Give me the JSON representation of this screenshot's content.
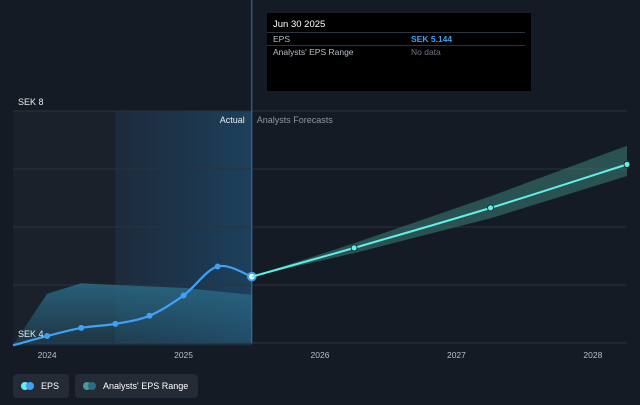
{
  "colors": {
    "background": "#151b24",
    "eps_line": "#3fa1f5",
    "forecast_line": "#5ff0e8",
    "range_fill": "#2a6b87",
    "forecast_band": "#3d7f7a",
    "gridline": "#2a323d",
    "axis_text": "#b8bfca"
  },
  "tooltip": {
    "date": "Jun 30 2025",
    "rows": [
      {
        "label": "EPS",
        "value": "SEK 5.144"
      },
      {
        "label": "Analysts' EPS Range",
        "value": "No data"
      }
    ]
  },
  "legend": {
    "items": [
      {
        "label": "EPS",
        "icon": "eps-dot-icon"
      },
      {
        "label": "Analysts' EPS Range",
        "icon": "range-dot-icon"
      }
    ]
  },
  "chart_data": {
    "type": "line",
    "currency": "SEK",
    "y_labels": [
      "SEK 8",
      "SEK 4"
    ],
    "ylim": [
      4,
      8
    ],
    "xlim": [
      2023.75,
      2028.25
    ],
    "x_ticks": [
      {
        "label": "2024",
        "value": 2024.0
      },
      {
        "label": "2025",
        "value": 2025.0
      },
      {
        "label": "2026",
        "value": 2026.0
      },
      {
        "label": "2027",
        "value": 2027.0
      },
      {
        "label": "2028",
        "value": 2028.0
      }
    ],
    "region_labels": {
      "actual": "Actual",
      "forecast": "Analysts Forecasts"
    },
    "actual_end": 2025.5,
    "highlight_start": 2024.5,
    "series": [
      {
        "name": "EPS",
        "kind": "actual",
        "x": [
          2023.75,
          2024.0,
          2024.25,
          2024.5,
          2024.75,
          2025.0,
          2025.25,
          2025.5
        ],
        "values": [
          3.96,
          4.12,
          4.26,
          4.33,
          4.47,
          4.82,
          5.32,
          5.144
        ]
      },
      {
        "name": "EPS forecast",
        "kind": "forecast",
        "x": [
          2025.5,
          2026.25,
          2027.25,
          2028.25
        ],
        "values": [
          5.144,
          5.64,
          6.33,
          7.08
        ],
        "band_low": [
          5.144,
          5.55,
          6.15,
          6.88
        ],
        "band_high": [
          5.144,
          5.72,
          6.53,
          7.4
        ]
      },
      {
        "name": "Analysts' EPS Range",
        "kind": "range",
        "x": [
          2023.75,
          2024.0,
          2024.25,
          2024.5,
          2025.0,
          2025.5
        ],
        "low": [
          3.96,
          3.96,
          3.96,
          3.96,
          3.96,
          3.96
        ],
        "high": [
          3.96,
          4.85,
          5.03,
          5.0,
          4.95,
          4.83
        ]
      }
    ]
  }
}
